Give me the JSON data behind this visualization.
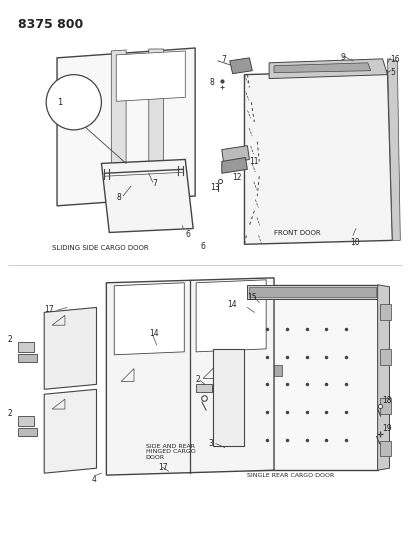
{
  "title": "8375 800",
  "bg_color": "#ffffff",
  "lc": "#444444",
  "tc": "#222222",
  "gray1": "#aaaaaa",
  "gray2": "#cccccc",
  "gray3": "#888888",
  "labels": {
    "sliding": "SLIDING SIDE CARGO DOOR",
    "front": "FRONT DOOR",
    "side_rear": "SIDE AND REAR\nHINGED CARGO\nDOOR",
    "single": "SINGLE REAR CARGO DOOR"
  }
}
